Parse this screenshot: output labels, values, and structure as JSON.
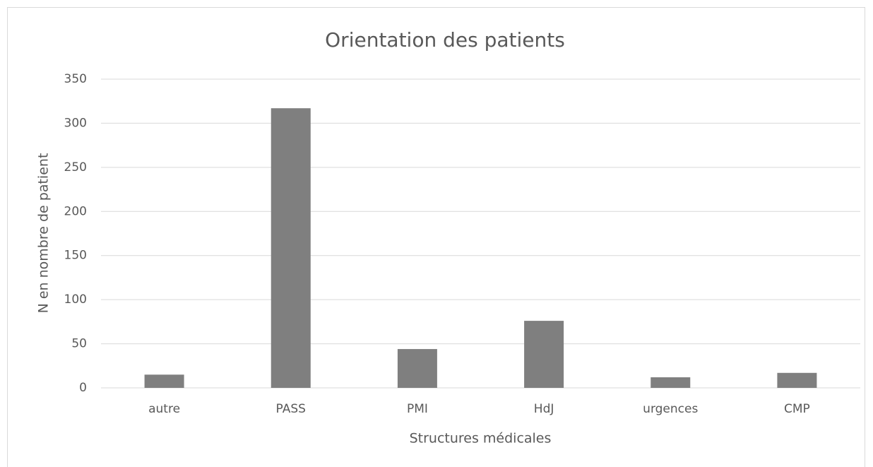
{
  "chart_data": {
    "type": "bar",
    "title": "Orientation des patients",
    "x_label": "Structures médicales",
    "y_label": "N en nombre de patient",
    "categories": [
      "autre",
      "PASS",
      "PMI",
      "HdJ",
      "urgences",
      "CMP"
    ],
    "values": [
      15,
      317,
      44,
      76,
      12,
      17
    ],
    "color": "#7f7f7f",
    "ylim": [
      0,
      350
    ],
    "yticks": [
      0,
      50,
      100,
      150,
      200,
      250,
      300,
      350
    ],
    "grid": true
  }
}
